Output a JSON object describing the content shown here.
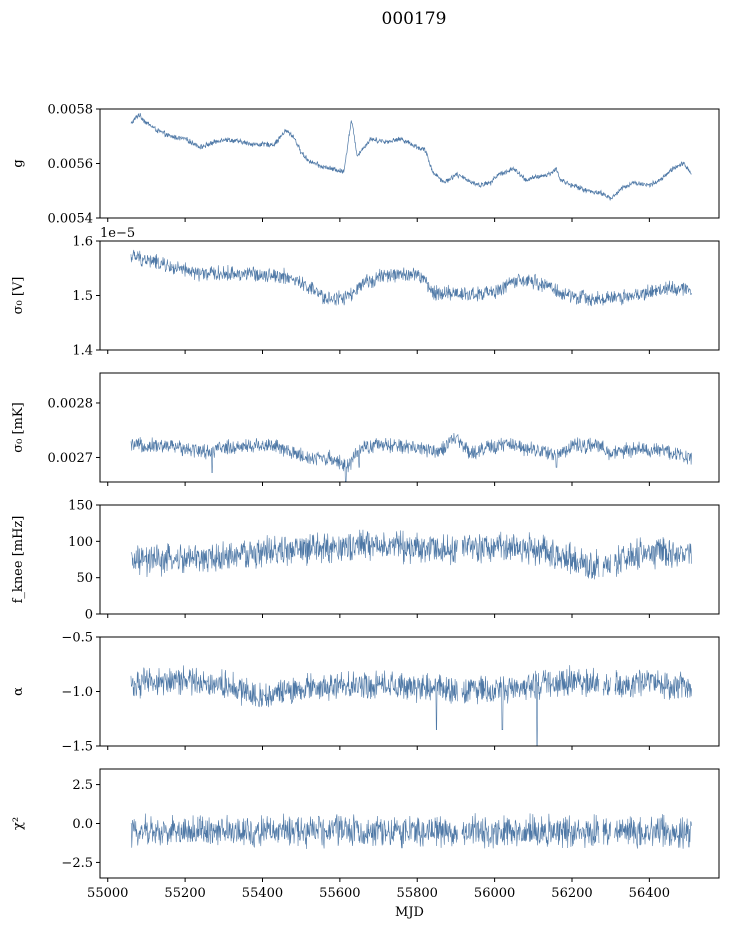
{
  "figure": {
    "title": "000179",
    "series_color": "#4e78a6"
  },
  "chart_data": [
    {
      "type": "line",
      "name": "gain",
      "ylabel": "g",
      "ylim": [
        0.0054,
        0.0058
      ],
      "yticks": [
        0.0054,
        0.0056,
        0.0058
      ],
      "ytick_labels": [
        "0.0054",
        "0.0056",
        "0.0058"
      ],
      "xlim": [
        54980,
        56580
      ],
      "noise": 8e-06,
      "trend": [
        [
          55060,
          0.005745
        ],
        [
          55080,
          0.00578
        ],
        [
          55100,
          0.00575
        ],
        [
          55130,
          0.00572
        ],
        [
          55160,
          0.0057
        ],
        [
          55200,
          0.00569
        ],
        [
          55240,
          0.00566
        ],
        [
          55260,
          0.00567
        ],
        [
          55300,
          0.00569
        ],
        [
          55340,
          0.00568
        ],
        [
          55380,
          0.00567
        ],
        [
          55400,
          0.00567
        ],
        [
          55430,
          0.00567
        ],
        [
          55460,
          0.00572
        ],
        [
          55480,
          0.0057
        ],
        [
          55500,
          0.00564
        ],
        [
          55520,
          0.00561
        ],
        [
          55550,
          0.00559
        ],
        [
          55580,
          0.00558
        ],
        [
          55610,
          0.00557
        ],
        [
          55630,
          0.00576
        ],
        [
          55645,
          0.00563
        ],
        [
          55680,
          0.00569
        ],
        [
          55720,
          0.00568
        ],
        [
          55760,
          0.00569
        ],
        [
          55800,
          0.00566
        ],
        [
          55820,
          0.00565
        ],
        [
          55840,
          0.00557
        ],
        [
          55870,
          0.00553
        ],
        [
          55900,
          0.00556
        ],
        [
          55930,
          0.00554
        ],
        [
          55960,
          0.00552
        ],
        [
          55990,
          0.00553
        ],
        [
          56010,
          0.00556
        ],
        [
          56050,
          0.00558
        ],
        [
          56080,
          0.00554
        ],
        [
          56110,
          0.00555
        ],
        [
          56140,
          0.00556
        ],
        [
          56160,
          0.00558
        ],
        [
          56170,
          0.00554
        ],
        [
          56200,
          0.00552
        ],
        [
          56240,
          0.0055
        ],
        [
          56280,
          0.00549
        ],
        [
          56300,
          0.00547
        ],
        [
          56330,
          0.00551
        ],
        [
          56360,
          0.00553
        ],
        [
          56400,
          0.00552
        ],
        [
          56430,
          0.00554
        ],
        [
          56460,
          0.00558
        ],
        [
          56490,
          0.0056
        ],
        [
          56510,
          0.00556
        ]
      ]
    },
    {
      "type": "line",
      "name": "sigma0_volts",
      "ylabel": "σ₀ [V]",
      "offset_label": "1e−5",
      "ylim": [
        1.4,
        1.6
      ],
      "yticks": [
        1.4,
        1.5,
        1.6
      ],
      "ytick_labels": [
        "1.4",
        "1.5",
        "1.6"
      ],
      "xlim": [
        54980,
        56580
      ],
      "noise": 0.012,
      "trend": [
        [
          55060,
          1.572
        ],
        [
          55120,
          1.562
        ],
        [
          55180,
          1.548
        ],
        [
          55240,
          1.54
        ],
        [
          55300,
          1.54
        ],
        [
          55360,
          1.54
        ],
        [
          55420,
          1.538
        ],
        [
          55460,
          1.535
        ],
        [
          55520,
          1.515
        ],
        [
          55560,
          1.495
        ],
        [
          55600,
          1.495
        ],
        [
          55630,
          1.5
        ],
        [
          55660,
          1.52
        ],
        [
          55700,
          1.535
        ],
        [
          55760,
          1.538
        ],
        [
          55800,
          1.538
        ],
        [
          55820,
          1.528
        ],
        [
          55840,
          1.505
        ],
        [
          55880,
          1.505
        ],
        [
          55920,
          1.503
        ],
        [
          55960,
          1.503
        ],
        [
          56000,
          1.505
        ],
        [
          56040,
          1.525
        ],
        [
          56100,
          1.525
        ],
        [
          56140,
          1.518
        ],
        [
          56180,
          1.5
        ],
        [
          56240,
          1.495
        ],
        [
          56300,
          1.495
        ],
        [
          56360,
          1.5
        ],
        [
          56400,
          1.505
        ],
        [
          56450,
          1.515
        ],
        [
          56510,
          1.51
        ]
      ]
    },
    {
      "type": "line",
      "name": "sigma0_mk",
      "ylabel": "σ₀ [mK]",
      "ylim": [
        0.002655,
        0.002855
      ],
      "yticks": [
        0.0027,
        0.0028
      ],
      "ytick_labels": [
        "0.0027",
        "0.0028"
      ],
      "xlim": [
        54980,
        56580
      ],
      "noise": 1.2e-05,
      "dips": [
        [
          55270,
          0.002672
        ],
        [
          55615,
          0.002656
        ],
        [
          55650,
          0.002682
        ],
        [
          56160,
          0.002682
        ]
      ],
      "trend": [
        [
          55060,
          0.002721
        ],
        [
          55120,
          0.002722
        ],
        [
          55200,
          0.002718
        ],
        [
          55260,
          0.00271
        ],
        [
          55300,
          0.002718
        ],
        [
          55380,
          0.002722
        ],
        [
          55420,
          0.002724
        ],
        [
          55460,
          0.002712
        ],
        [
          55520,
          0.0027
        ],
        [
          55580,
          0.002698
        ],
        [
          55620,
          0.002685
        ],
        [
          55660,
          0.002718
        ],
        [
          55700,
          0.002722
        ],
        [
          55760,
          0.00272
        ],
        [
          55800,
          0.002718
        ],
        [
          55860,
          0.002712
        ],
        [
          55900,
          0.002735
        ],
        [
          55940,
          0.002708
        ],
        [
          55980,
          0.002718
        ],
        [
          56040,
          0.002724
        ],
        [
          56100,
          0.002716
        ],
        [
          56160,
          0.002704
        ],
        [
          56200,
          0.002722
        ],
        [
          56260,
          0.002722
        ],
        [
          56300,
          0.002708
        ],
        [
          56360,
          0.002715
        ],
        [
          56440,
          0.002712
        ],
        [
          56510,
          0.0027
        ]
      ]
    },
    {
      "type": "line",
      "name": "fknee",
      "ylabel": "f_knee [mHz]",
      "ylim": [
        0,
        150
      ],
      "yticks": [
        0,
        50,
        100,
        150
      ],
      "ytick_labels": [
        "0",
        "50",
        "100",
        "150"
      ],
      "xlim": [
        54980,
        56580
      ],
      "noise": 18,
      "gaps": [
        [
          55905,
          55915
        ],
        [
          56270,
          56280
        ],
        [
          56300,
          56310
        ]
      ],
      "trend": [
        [
          55060,
          72
        ],
        [
          55200,
          75
        ],
        [
          55300,
          78
        ],
        [
          55400,
          85
        ],
        [
          55500,
          88
        ],
        [
          55600,
          92
        ],
        [
          55700,
          95
        ],
        [
          55800,
          90
        ],
        [
          55900,
          90
        ],
        [
          56000,
          92
        ],
        [
          56100,
          90
        ],
        [
          56200,
          75
        ],
        [
          56250,
          65
        ],
        [
          56300,
          70
        ],
        [
          56400,
          85
        ],
        [
          56510,
          82
        ]
      ]
    },
    {
      "type": "line",
      "name": "alpha",
      "ylabel": "α",
      "ylim": [
        -1.5,
        -0.5
      ],
      "yticks": [
        -1.5,
        -1.0,
        -0.5
      ],
      "ytick_labels": [
        "−1.5",
        "−1.0",
        "−0.5"
      ],
      "xlim": [
        54980,
        56580
      ],
      "noise": 0.11,
      "gaps": [
        [
          55905,
          55915
        ],
        [
          56270,
          56280
        ],
        [
          56300,
          56310
        ]
      ],
      "dips": [
        [
          56110,
          -1.5
        ],
        [
          55850,
          -1.35
        ],
        [
          56020,
          -1.35
        ]
      ],
      "trend": [
        [
          55060,
          -0.93
        ],
        [
          55200,
          -0.9
        ],
        [
          55300,
          -0.93
        ],
        [
          55400,
          -1.05
        ],
        [
          55500,
          -0.98
        ],
        [
          55600,
          -0.95
        ],
        [
          55700,
          -0.93
        ],
        [
          55800,
          -0.98
        ],
        [
          55900,
          -0.98
        ],
        [
          56000,
          -0.98
        ],
        [
          56100,
          -0.95
        ],
        [
          56200,
          -0.9
        ],
        [
          56300,
          -0.95
        ],
        [
          56400,
          -0.93
        ],
        [
          56510,
          -0.95
        ]
      ]
    },
    {
      "type": "line",
      "name": "chi2",
      "ylabel": "χ²",
      "xlabel": "MJD",
      "ylim": [
        -3.5,
        3.5
      ],
      "yticks": [
        -2.5,
        0.0,
        2.5
      ],
      "ytick_labels": [
        "−2.5",
        "0.0",
        "2.5"
      ],
      "xticks": [
        55000,
        55200,
        55400,
        55600,
        55800,
        56000,
        56200,
        56400
      ],
      "xtick_labels": [
        "55000",
        "55200",
        "55400",
        "55600",
        "55800",
        "56000",
        "56200",
        "56400"
      ],
      "xlim": [
        54980,
        56580
      ],
      "noise": 0.85,
      "gaps": [
        [
          55905,
          55915
        ],
        [
          56270,
          56280
        ],
        [
          56300,
          56310
        ]
      ],
      "trend": [
        [
          55060,
          -0.5
        ],
        [
          55300,
          -0.5
        ],
        [
          55600,
          -0.5
        ],
        [
          55900,
          -0.5
        ],
        [
          56200,
          -0.5
        ],
        [
          56510,
          -0.5
        ]
      ]
    }
  ]
}
